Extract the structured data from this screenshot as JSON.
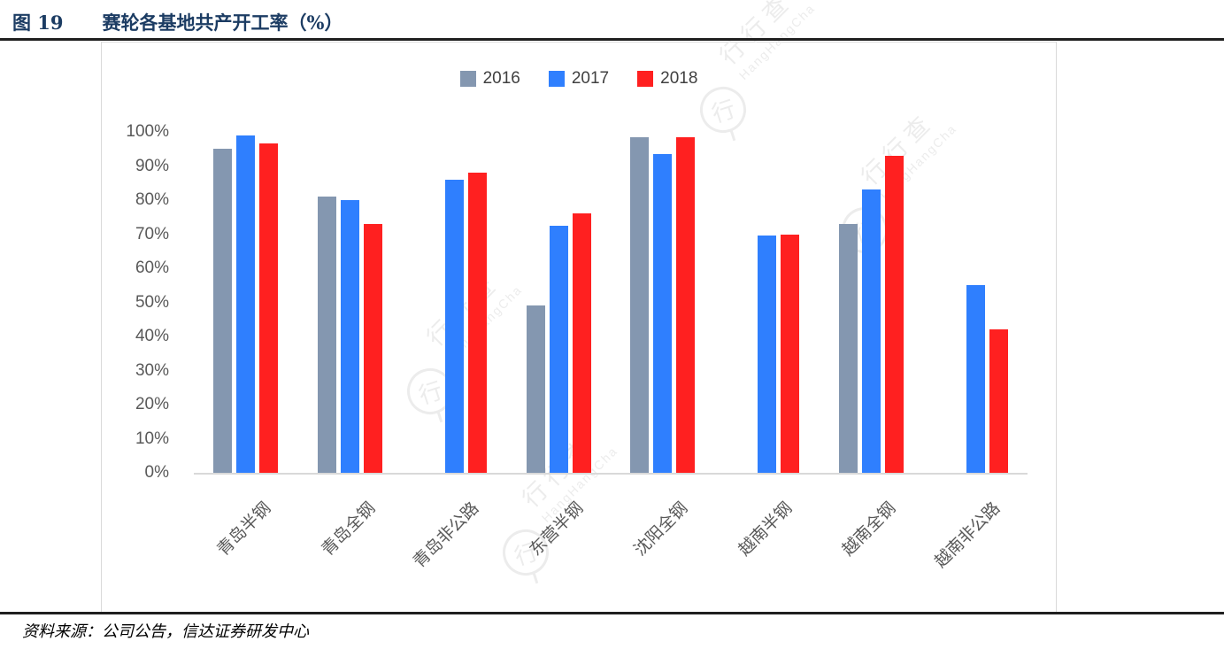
{
  "figure": {
    "label": "图 19",
    "title": "赛轮各基地共产开工率（%）",
    "source": "资料来源：公司公告，信达证券研发中心"
  },
  "watermark": {
    "logo_glyph": "行",
    "brand_large": "行行查",
    "brand_small": "HangHangCha"
  },
  "chart_data": {
    "type": "bar",
    "title": "赛轮各基地共产开工率（%）",
    "categories": [
      "青岛半钢",
      "青岛全钢",
      "青岛非公路",
      "东营半钢",
      "沈阳全钢",
      "越南半钢",
      "越南全钢",
      "越南非公路"
    ],
    "series": [
      {
        "name": "2016",
        "color": "#8497B0",
        "values": [
          95,
          81,
          null,
          49,
          98.5,
          null,
          73,
          null
        ]
      },
      {
        "name": "2017",
        "color": "#2F7FFE",
        "values": [
          99,
          80,
          86,
          72.5,
          93.5,
          69.5,
          83,
          55
        ]
      },
      {
        "name": "2018",
        "color": "#FF2020",
        "values": [
          96.5,
          73,
          88,
          76,
          98.5,
          70,
          93,
          42
        ]
      }
    ],
    "ylim": [
      0,
      100
    ],
    "ytick_values": [
      0,
      10,
      20,
      30,
      40,
      50,
      60,
      70,
      80,
      90,
      100
    ],
    "ytick_labels": [
      "0%",
      "10%",
      "20%",
      "30%",
      "40%",
      "50%",
      "60%",
      "70%",
      "80%",
      "90%",
      "100%"
    ],
    "legend_position": "top",
    "grid": false,
    "axis_text_color": "#595959",
    "legend_text_color": "#404040"
  }
}
